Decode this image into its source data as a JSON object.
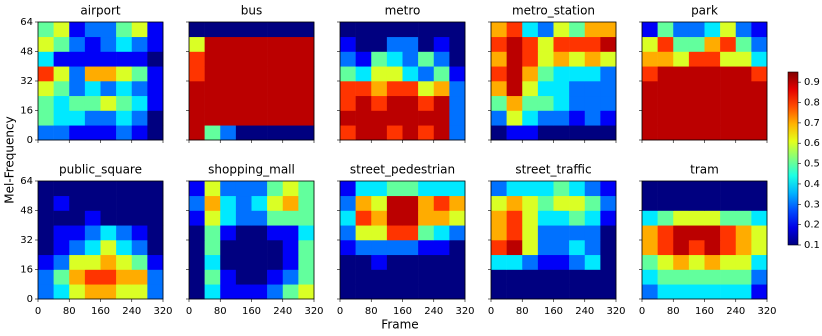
{
  "xlabel": "Frame",
  "ylabel": "Mel-Frequency",
  "colorbar": {
    "lim": [
      0.1,
      0.95
    ],
    "ticks": [
      0.1,
      0.2,
      0.3,
      0.4,
      0.5,
      0.6,
      0.7,
      0.8,
      0.9
    ]
  },
  "chart_data": [
    {
      "type": "heatmap",
      "title": "airport",
      "xlim": [
        0,
        320
      ],
      "xticks": [
        0,
        80,
        160,
        240,
        320
      ],
      "ylim": [
        0,
        64
      ],
      "yticks": [
        0,
        16,
        32,
        48,
        64
      ],
      "values": [
        [
          0.3,
          0.3,
          0.2,
          0.2,
          0.2,
          0.3,
          0.2,
          0.1
        ],
        [
          0.5,
          0.4,
          0.4,
          0.3,
          0.3,
          0.4,
          0.3,
          0.1
        ],
        [
          0.5,
          0.4,
          0.5,
          0.5,
          0.6,
          0.5,
          0.4,
          0.2
        ],
        [
          0.6,
          0.5,
          0.3,
          0.4,
          0.3,
          0.4,
          0.3,
          0.2
        ],
        [
          0.8,
          0.6,
          0.3,
          0.7,
          0.7,
          0.6,
          0.5,
          0.2
        ],
        [
          0.4,
          0.2,
          0.2,
          0.2,
          0.2,
          0.2,
          0.2,
          0.1
        ],
        [
          0.6,
          0.5,
          0.3,
          0.2,
          0.3,
          0.4,
          0.3,
          0.2
        ],
        [
          0.5,
          0.6,
          0.2,
          0.3,
          0.3,
          0.5,
          0.6,
          0.2
        ]
      ]
    },
    {
      "type": "heatmap",
      "title": "bus",
      "xlim": [
        0,
        320
      ],
      "xticks": [
        0,
        80,
        160,
        240,
        320
      ],
      "ylim": [
        0,
        64
      ],
      "yticks": [
        0,
        16,
        32,
        48,
        64
      ],
      "values": [
        [
          0.9,
          0.5,
          0.3,
          0.1,
          0.1,
          0.1,
          0.1,
          0.1
        ],
        [
          0.9,
          0.9,
          0.9,
          0.9,
          0.9,
          0.9,
          0.9,
          0.9
        ],
        [
          0.9,
          0.9,
          0.9,
          0.9,
          0.9,
          0.9,
          0.9,
          0.9
        ],
        [
          0.9,
          0.9,
          0.9,
          0.9,
          0.9,
          0.9,
          0.9,
          0.9
        ],
        [
          0.8,
          0.9,
          0.9,
          0.9,
          0.9,
          0.9,
          0.9,
          0.9
        ],
        [
          0.8,
          0.9,
          0.9,
          0.9,
          0.9,
          0.9,
          0.9,
          0.9
        ],
        [
          0.6,
          0.9,
          0.9,
          0.9,
          0.9,
          0.9,
          0.9,
          0.9
        ],
        [
          0.1,
          0.1,
          0.1,
          0.1,
          0.1,
          0.1,
          0.1,
          0.1
        ]
      ]
    },
    {
      "type": "heatmap",
      "title": "metro",
      "xlim": [
        0,
        320
      ],
      "xticks": [
        0,
        80,
        160,
        240,
        320
      ],
      "ylim": [
        0,
        64
      ],
      "yticks": [
        0,
        16,
        32,
        48,
        64
      ],
      "values": [
        [
          0.8,
          0.9,
          0.9,
          0.8,
          0.9,
          0.8,
          0.9,
          0.3
        ],
        [
          0.9,
          0.9,
          0.9,
          0.9,
          0.9,
          0.9,
          0.9,
          0.3
        ],
        [
          0.8,
          0.9,
          0.8,
          0.9,
          0.9,
          0.8,
          0.9,
          0.3
        ],
        [
          0.8,
          0.8,
          0.7,
          0.8,
          0.8,
          0.6,
          0.7,
          0.3
        ],
        [
          0.5,
          0.4,
          0.6,
          0.6,
          0.4,
          0.3,
          0.5,
          0.2
        ],
        [
          0.3,
          0.2,
          0.5,
          0.4,
          0.3,
          0.5,
          0.3,
          0.1
        ],
        [
          0.2,
          0.1,
          0.1,
          0.3,
          0.3,
          0.1,
          0.2,
          0.1
        ],
        [
          0.1,
          0.1,
          0.1,
          0.1,
          0.1,
          0.1,
          0.1,
          0.1
        ]
      ]
    },
    {
      "type": "heatmap",
      "title": "metro_station",
      "xlim": [
        0,
        320
      ],
      "xticks": [
        0,
        80,
        160,
        240,
        320
      ],
      "ylim": [
        0,
        64
      ],
      "yticks": [
        0,
        16,
        32,
        48,
        64
      ],
      "values": [
        [
          0.1,
          0.2,
          0.2,
          0.1,
          0.1,
          0.1,
          0.1,
          0.1
        ],
        [
          0.3,
          0.6,
          0.4,
          0.3,
          0.3,
          0.2,
          0.3,
          0.2
        ],
        [
          0.5,
          0.7,
          0.5,
          0.5,
          0.4,
          0.3,
          0.3,
          0.3
        ],
        [
          0.7,
          0.9,
          0.6,
          0.4,
          0.4,
          0.3,
          0.3,
          0.3
        ],
        [
          0.8,
          0.9,
          0.7,
          0.5,
          0.4,
          0.4,
          0.4,
          0.3
        ],
        [
          0.7,
          0.9,
          0.8,
          0.6,
          0.7,
          0.6,
          0.7,
          0.6
        ],
        [
          0.8,
          0.9,
          0.8,
          0.6,
          0.8,
          0.8,
          0.8,
          0.9
        ],
        [
          0.7,
          0.8,
          0.4,
          0.3,
          0.6,
          0.5,
          0.7,
          0.7
        ]
      ]
    },
    {
      "type": "heatmap",
      "title": "park",
      "xlim": [
        0,
        320
      ],
      "xticks": [
        0,
        80,
        160,
        240,
        320
      ],
      "ylim": [
        0,
        64
      ],
      "yticks": [
        0,
        16,
        32,
        48,
        64
      ],
      "values": [
        [
          0.9,
          0.9,
          0.9,
          0.9,
          0.9,
          0.9,
          0.9,
          0.9
        ],
        [
          0.9,
          0.9,
          0.9,
          0.9,
          0.9,
          0.9,
          0.9,
          0.9
        ],
        [
          0.9,
          0.9,
          0.9,
          0.9,
          0.9,
          0.9,
          0.9,
          0.9
        ],
        [
          0.9,
          0.9,
          0.9,
          0.9,
          0.9,
          0.9,
          0.9,
          0.9
        ],
        [
          0.8,
          0.9,
          0.9,
          0.9,
          0.9,
          0.9,
          0.9,
          0.8
        ],
        [
          0.7,
          0.7,
          0.6,
          0.8,
          0.8,
          0.6,
          0.6,
          0.4
        ],
        [
          0.6,
          0.8,
          0.5,
          0.5,
          0.7,
          0.8,
          0.5,
          0.3
        ],
        [
          0.2,
          0.5,
          0.3,
          0.3,
          0.4,
          0.6,
          0.3,
          0.2
        ]
      ]
    },
    {
      "type": "heatmap",
      "title": "public_square",
      "xlim": [
        0,
        320
      ],
      "xticks": [
        0,
        80,
        160,
        240,
        320
      ],
      "ylim": [
        0,
        64
      ],
      "yticks": [
        0,
        16,
        32,
        48,
        64
      ],
      "values": [
        [
          0.3,
          0.4,
          0.6,
          0.7,
          0.7,
          0.6,
          0.6,
          0.3
        ],
        [
          0.3,
          0.5,
          0.7,
          0.8,
          0.8,
          0.7,
          0.7,
          0.3
        ],
        [
          0.2,
          0.3,
          0.6,
          0.6,
          0.7,
          0.6,
          0.5,
          0.2
        ],
        [
          0.1,
          0.2,
          0.3,
          0.4,
          0.6,
          0.4,
          0.3,
          0.1
        ],
        [
          0.1,
          0.2,
          0.2,
          0.3,
          0.4,
          0.3,
          0.2,
          0.1
        ],
        [
          0.1,
          0.1,
          0.1,
          0.2,
          0.1,
          0.1,
          0.1,
          0.1
        ],
        [
          0.1,
          0.2,
          0.1,
          0.1,
          0.1,
          0.1,
          0.1,
          0.1
        ],
        [
          0.1,
          0.1,
          0.1,
          0.1,
          0.1,
          0.1,
          0.1,
          0.1
        ]
      ]
    },
    {
      "type": "heatmap",
      "title": "shopping_mall",
      "xlim": [
        0,
        320
      ],
      "xticks": [
        0,
        80,
        160,
        240,
        320
      ],
      "ylim": [
        0,
        64
      ],
      "yticks": [
        0,
        16,
        32,
        48,
        64
      ],
      "values": [
        [
          0.1,
          0.4,
          0.2,
          0.2,
          0.2,
          0.3,
          0.5,
          0.6
        ],
        [
          0.1,
          0.5,
          0.2,
          0.1,
          0.1,
          0.2,
          0.3,
          0.5
        ],
        [
          0.1,
          0.4,
          0.1,
          0.1,
          0.1,
          0.1,
          0.2,
          0.5
        ],
        [
          0.1,
          0.5,
          0.1,
          0.1,
          0.1,
          0.1,
          0.2,
          0.5
        ],
        [
          0.1,
          0.5,
          0.2,
          0.1,
          0.1,
          0.2,
          0.2,
          0.4
        ],
        [
          0.2,
          0.6,
          0.4,
          0.3,
          0.3,
          0.5,
          0.5,
          0.5
        ],
        [
          0.3,
          0.7,
          0.4,
          0.3,
          0.4,
          0.6,
          0.7,
          0.5
        ],
        [
          0.2,
          0.6,
          0.3,
          0.3,
          0.3,
          0.5,
          0.6,
          0.5
        ]
      ]
    },
    {
      "type": "heatmap",
      "title": "street_pedestrian",
      "xlim": [
        0,
        320
      ],
      "xticks": [
        0,
        80,
        160,
        240,
        320
      ],
      "ylim": [
        0,
        64
      ],
      "yticks": [
        0,
        16,
        32,
        48,
        64
      ],
      "values": [
        [
          0.1,
          0.1,
          0.1,
          0.1,
          0.1,
          0.1,
          0.1,
          0.1
        ],
        [
          0.1,
          0.1,
          0.1,
          0.1,
          0.1,
          0.1,
          0.1,
          0.1
        ],
        [
          0.1,
          0.1,
          0.2,
          0.1,
          0.1,
          0.1,
          0.1,
          0.1
        ],
        [
          0.2,
          0.3,
          0.3,
          0.3,
          0.3,
          0.2,
          0.2,
          0.1
        ],
        [
          0.3,
          0.6,
          0.6,
          0.8,
          0.8,
          0.5,
          0.4,
          0.3
        ],
        [
          0.4,
          0.8,
          0.7,
          0.9,
          0.9,
          0.7,
          0.7,
          0.6
        ],
        [
          0.3,
          0.7,
          0.6,
          0.9,
          0.9,
          0.7,
          0.8,
          0.7
        ],
        [
          0.2,
          0.4,
          0.4,
          0.5,
          0.5,
          0.4,
          0.4,
          0.4
        ]
      ]
    },
    {
      "type": "heatmap",
      "title": "street_traffic",
      "xlim": [
        0,
        320
      ],
      "xticks": [
        0,
        80,
        160,
        240,
        320
      ],
      "ylim": [
        0,
        64
      ],
      "yticks": [
        0,
        16,
        32,
        48,
        64
      ],
      "values": [
        [
          0.1,
          0.1,
          0.1,
          0.1,
          0.1,
          0.1,
          0.1,
          0.1
        ],
        [
          0.1,
          0.1,
          0.1,
          0.1,
          0.1,
          0.1,
          0.1,
          0.1
        ],
        [
          0.4,
          0.4,
          0.3,
          0.2,
          0.2,
          0.3,
          0.4,
          0.1
        ],
        [
          0.8,
          0.9,
          0.6,
          0.3,
          0.3,
          0.4,
          0.3,
          0.1
        ],
        [
          0.7,
          0.8,
          0.6,
          0.3,
          0.3,
          0.3,
          0.3,
          0.1
        ],
        [
          0.7,
          0.8,
          0.6,
          0.4,
          0.4,
          0.5,
          0.4,
          0.2
        ],
        [
          0.6,
          0.7,
          0.6,
          0.5,
          0.6,
          0.6,
          0.5,
          0.3
        ],
        [
          0.3,
          0.4,
          0.4,
          0.4,
          0.5,
          0.4,
          0.3,
          0.2
        ]
      ]
    },
    {
      "type": "heatmap",
      "title": "tram",
      "xlim": [
        0,
        320
      ],
      "xticks": [
        0,
        80,
        160,
        240,
        320
      ],
      "ylim": [
        0,
        64
      ],
      "yticks": [
        0,
        16,
        32,
        48,
        64
      ],
      "values": [
        [
          0.3,
          0.4,
          0.4,
          0.4,
          0.4,
          0.4,
          0.4,
          0.2
        ],
        [
          0.4,
          0.5,
          0.5,
          0.5,
          0.5,
          0.5,
          0.5,
          0.3
        ],
        [
          0.5,
          0.6,
          0.7,
          0.6,
          0.7,
          0.6,
          0.6,
          0.4
        ],
        [
          0.7,
          0.8,
          0.9,
          0.8,
          0.9,
          0.8,
          0.7,
          0.6
        ],
        [
          0.7,
          0.8,
          0.9,
          0.9,
          0.9,
          0.8,
          0.7,
          0.6
        ],
        [
          0.4,
          0.5,
          0.6,
          0.6,
          0.6,
          0.5,
          0.5,
          0.4
        ],
        [
          0.1,
          0.1,
          0.1,
          0.1,
          0.1,
          0.1,
          0.1,
          0.1
        ],
        [
          0.1,
          0.1,
          0.1,
          0.1,
          0.1,
          0.1,
          0.1,
          0.1
        ]
      ]
    }
  ]
}
